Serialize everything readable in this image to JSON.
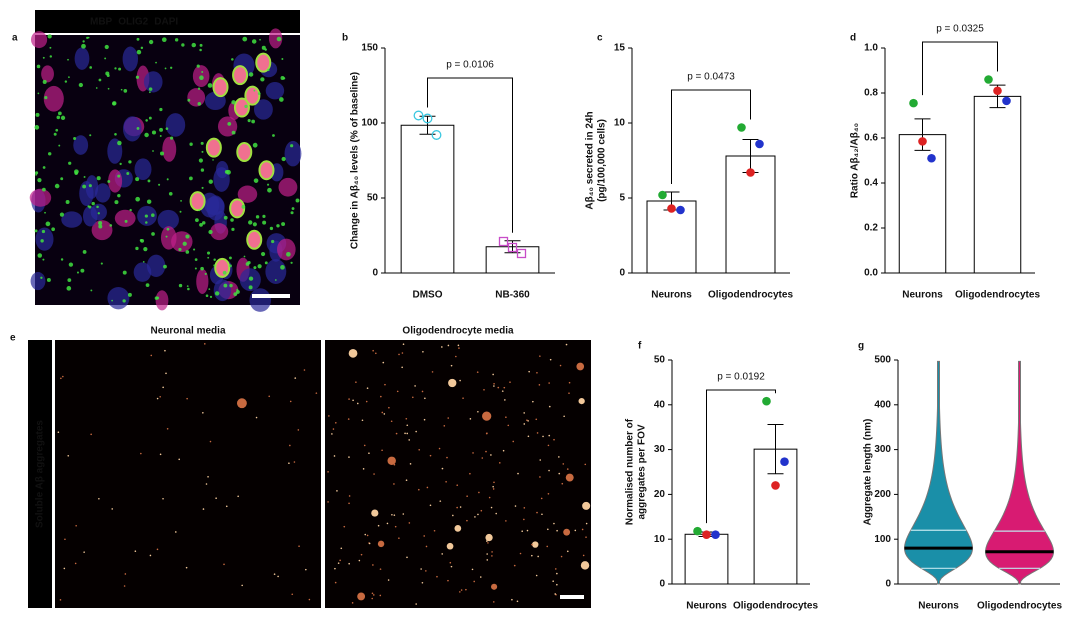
{
  "image_panels": {
    "a": {
      "letter": "a",
      "labels": [
        {
          "text": "MBP",
          "color": "#33e033"
        },
        {
          "text": "OLIG2",
          "color": "#ff2a2a"
        },
        {
          "text": "DAPI",
          "color": "#2a3bff"
        }
      ]
    },
    "e": {
      "letter": "e",
      "side_label": "Soluble Aβ aggregates",
      "titles": [
        "Neuronal media",
        "Oligodendrocyte media"
      ]
    }
  },
  "chart_data": [
    {
      "type": "bar",
      "letter": "b",
      "ylabel": [
        "Change in Aβ₄₀ levels (% of baseline)"
      ],
      "categories": [
        "DMSO",
        "NB-360"
      ],
      "values": [
        98.5,
        17.5
      ],
      "errors": [
        6,
        4
      ],
      "points": [
        {
          "values": [
            105,
            21
          ]
        },
        {
          "values": [
            103,
            17
          ]
        },
        {
          "values": [
            92,
            13
          ]
        }
      ],
      "point_colors": [
        "#3cc8e0",
        "#c84cc8"
      ],
      "point_markers": [
        "circle",
        "square"
      ],
      "open_markers": true,
      "annotation": "p = 0.0106",
      "ylim": [
        0,
        150
      ],
      "yticks": [
        0,
        50,
        100,
        150
      ]
    },
    {
      "type": "bar",
      "letter": "c",
      "ylabel": [
        "Aβ₄₀ secreted in 24h",
        "(pg/100,000 cells)"
      ],
      "categories": [
        "Neurons",
        "Oligodendrocytes"
      ],
      "values": [
        4.8,
        7.8
      ],
      "errors": [
        0.6,
        1.1
      ],
      "points": [
        {
          "color": "#22aa33",
          "values": [
            5.2,
            9.7
          ]
        },
        {
          "color": "#dd2222",
          "values": [
            4.3,
            6.7
          ]
        },
        {
          "color": "#2233cc",
          "values": [
            4.2,
            8.6
          ]
        }
      ],
      "annotation": "p = 0.0473",
      "ylim": [
        0,
        15
      ],
      "yticks": [
        0,
        5,
        10,
        15
      ]
    },
    {
      "type": "bar",
      "letter": "d",
      "ylabel": [
        "Ratio Aβ₄₂/Aβ₄₀"
      ],
      "categories": [
        "Neurons",
        "Oligodendrocytes"
      ],
      "values": [
        0.615,
        0.785
      ],
      "errors": [
        0.07,
        0.05
      ],
      "points": [
        {
          "color": "#22aa33",
          "values": [
            0.755,
            0.86
          ]
        },
        {
          "color": "#dd2222",
          "values": [
            0.585,
            0.81
          ]
        },
        {
          "color": "#2233cc",
          "values": [
            0.51,
            0.765
          ]
        }
      ],
      "annotation": "p = 0.0325",
      "ylim": [
        0,
        1
      ],
      "yticks": [
        {
          "value": 0,
          "label": "0.0"
        },
        0.2,
        0.4,
        0.6,
        0.8,
        {
          "value": 1,
          "label": "1.0"
        }
      ]
    },
    {
      "type": "bar",
      "letter": "f",
      "ylabel": [
        "Normalised number of",
        "aggregates per FOV"
      ],
      "categories": [
        "Neurons",
        "Oligodendrocytes"
      ],
      "values": [
        11.1,
        30.1
      ],
      "errors": [
        0.5,
        5.5
      ],
      "points": [
        {
          "color": "#22aa33",
          "values": [
            11.8,
            40.8
          ]
        },
        {
          "color": "#dd2222",
          "values": [
            11,
            22
          ]
        },
        {
          "color": "#2233cc",
          "values": [
            11,
            27.3
          ]
        }
      ],
      "annotation": "p = 0.0192",
      "ylim": [
        0,
        50
      ],
      "yticks": [
        0,
        10,
        20,
        30,
        40,
        50
      ]
    },
    {
      "type": "violin",
      "letter": "g",
      "ylabel": [
        "Aggregate length (nm)"
      ],
      "categories": [
        "Neurons",
        "Oligodendrocytes"
      ],
      "colors": [
        "#1a8fa8",
        "#d81b72"
      ],
      "min": [
        0,
        0
      ],
      "q1": [
        35,
        35
      ],
      "medians": [
        80,
        72
      ],
      "q3": [
        120,
        118
      ],
      "max": [
        497,
        497
      ],
      "ylim": [
        0,
        500
      ],
      "yticks": [
        0,
        100,
        200,
        300,
        400,
        500
      ]
    }
  ]
}
